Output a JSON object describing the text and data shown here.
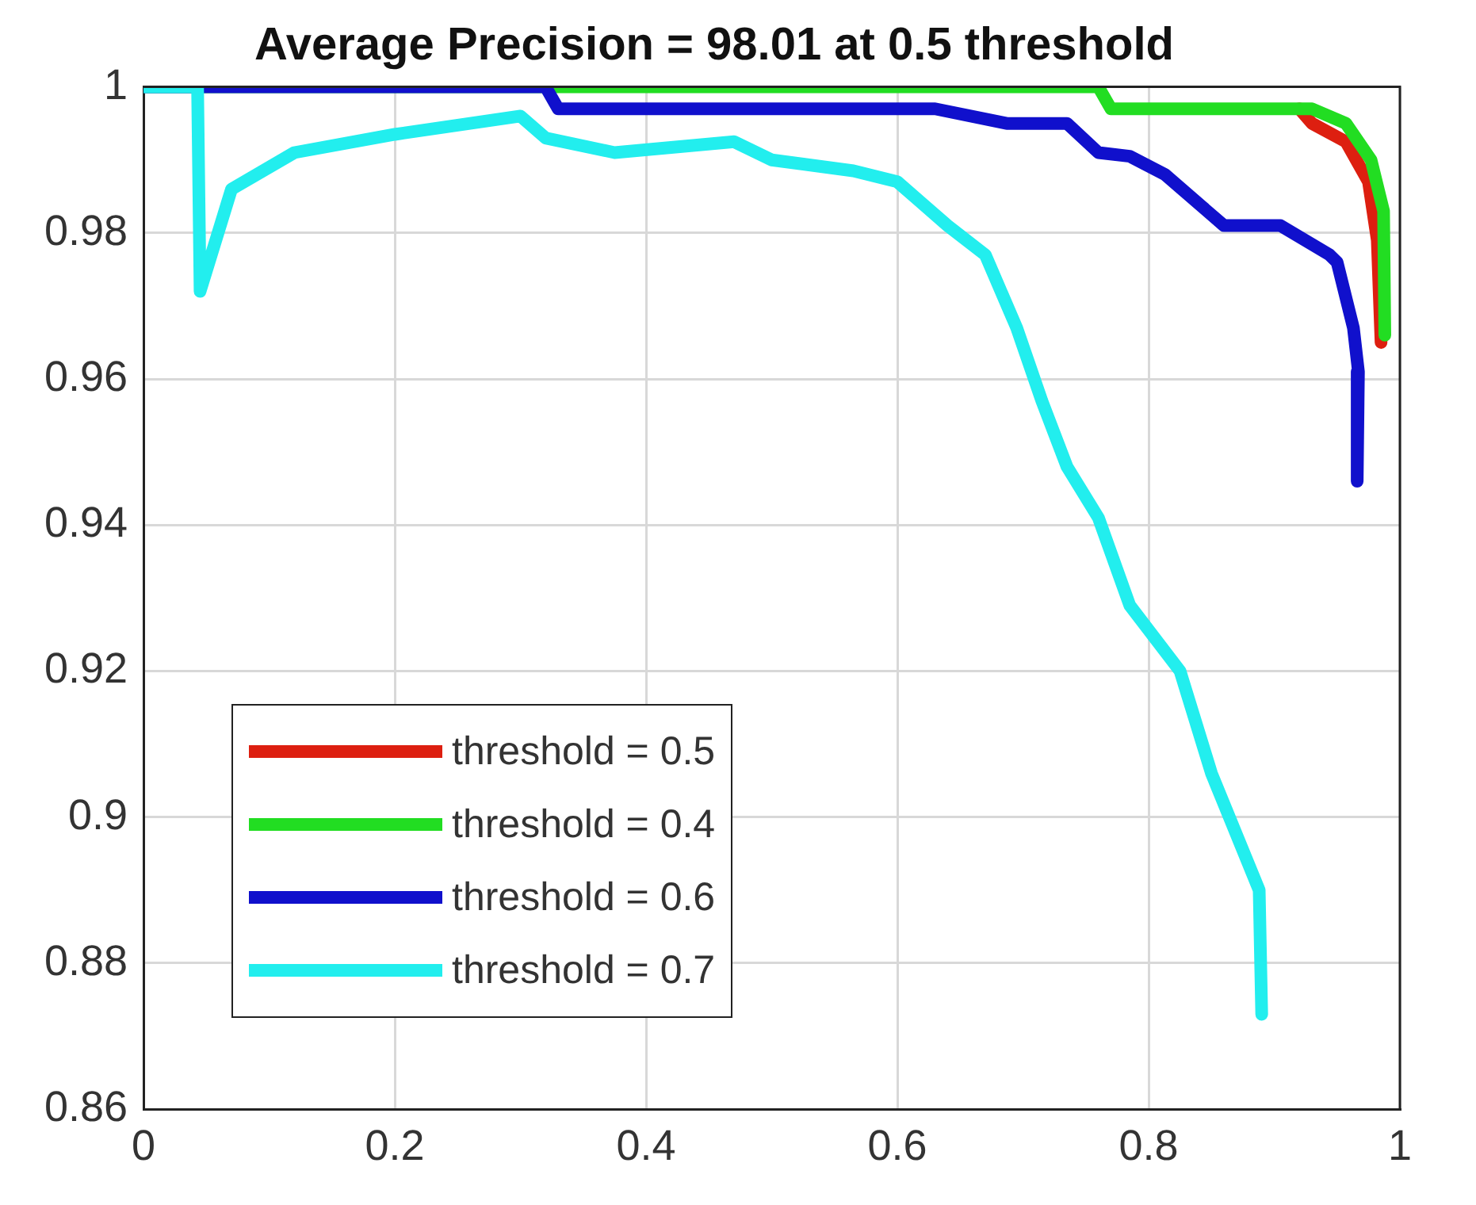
{
  "chart_data": {
    "type": "line",
    "title": "Average Precision = 98.01 at 0.5 threshold",
    "xlim": [
      0,
      1
    ],
    "ylim": [
      0.86,
      1
    ],
    "xticks": [
      0,
      0.2,
      0.4,
      0.6,
      0.8,
      1
    ],
    "yticks": [
      0.86,
      0.88,
      0.9,
      0.92,
      0.94,
      0.96,
      0.98,
      1
    ],
    "grid": true,
    "legend": "bottom left",
    "marker": "none",
    "line_style": "solid",
    "series": [
      {
        "name": "threshold = 0.5",
        "color": "#dd1f10",
        "x": [
          0.92,
          0.93,
          0.957,
          0.975,
          0.982,
          0.985
        ],
        "values": [
          0.997,
          0.995,
          0.9925,
          0.987,
          0.979,
          0.965
        ]
      },
      {
        "name": "threshold = 0.4",
        "color": "#22dd22",
        "x": [
          0,
          0.33,
          0.76,
          0.77,
          0.93,
          0.957,
          0.977,
          0.987,
          0.988
        ],
        "values": [
          1,
          1,
          1,
          0.997,
          0.997,
          0.995,
          0.99,
          0.983,
          0.966
        ]
      },
      {
        "name": "threshold = 0.6",
        "color": "#1010cc",
        "x": [
          0,
          0.32,
          0.33,
          0.63,
          0.687,
          0.735,
          0.76,
          0.785,
          0.813,
          0.86,
          0.905,
          0.944,
          0.95,
          0.963,
          0.967,
          0.966
        ],
        "values": [
          1,
          1,
          0.997,
          0.997,
          0.995,
          0.995,
          0.991,
          0.9905,
          0.988,
          0.981,
          0.981,
          0.977,
          0.976,
          0.967,
          0.961,
          0.946
        ]
      },
      {
        "name": "threshold = 0.7",
        "color": "#22eeee",
        "x": [
          0,
          0.043,
          0.045,
          0.07,
          0.12,
          0.2,
          0.3,
          0.32,
          0.375,
          0.47,
          0.5,
          0.565,
          0.6,
          0.64,
          0.67,
          0.695,
          0.715,
          0.735,
          0.76,
          0.785,
          0.825,
          0.85,
          0.888,
          0.89
        ],
        "values": [
          1,
          1,
          0.972,
          0.986,
          0.991,
          0.9935,
          0.996,
          0.993,
          0.991,
          0.9925,
          0.99,
          0.9885,
          0.987,
          0.981,
          0.977,
          0.967,
          0.957,
          0.948,
          0.941,
          0.929,
          0.92,
          0.906,
          0.89,
          0.873
        ]
      }
    ]
  }
}
